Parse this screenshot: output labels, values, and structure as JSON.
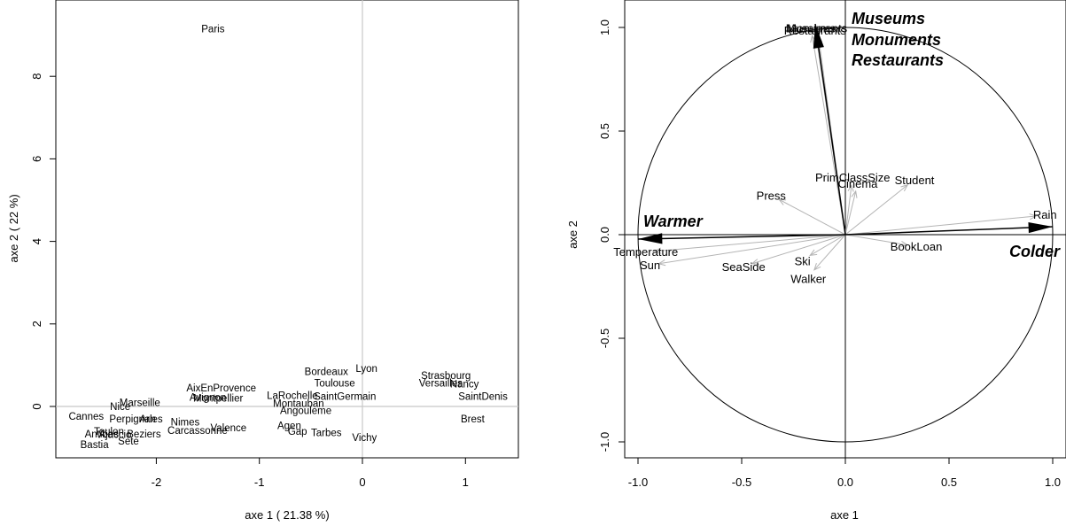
{
  "chart_data": [
    {
      "type": "scatter",
      "xlabel": "axe 1 ( 21.38 %)",
      "ylabel": "axe 2 ( 22 %)",
      "xlim": [
        -2.85,
        1.5
      ],
      "ylim": [
        -1.25,
        9.5
      ],
      "x_ticks": [
        -2,
        -1,
        0,
        1
      ],
      "y_ticks": [
        0,
        2,
        4,
        6,
        8
      ],
      "reference_lines": {
        "x": 0,
        "y": 0,
        "color": "#c8c8c8"
      },
      "points": [
        {
          "label": "Paris",
          "x": -1.45,
          "y": 9.15
        },
        {
          "label": "Lyon",
          "x": 0.04,
          "y": 0.92
        },
        {
          "label": "Bordeaux",
          "x": -0.35,
          "y": 0.85
        },
        {
          "label": "Toulouse",
          "x": -0.27,
          "y": 0.57
        },
        {
          "label": "Strasbourg",
          "x": 0.81,
          "y": 0.75
        },
        {
          "label": "Versailles",
          "x": 0.76,
          "y": 0.57
        },
        {
          "label": "Nancy",
          "x": 0.99,
          "y": 0.55
        },
        {
          "label": "SaintDenis",
          "x": 1.17,
          "y": 0.25
        },
        {
          "label": "Brest",
          "x": 1.07,
          "y": -0.3
        },
        {
          "label": "SaintGermain",
          "x": -0.17,
          "y": 0.25
        },
        {
          "label": "LaRochelle",
          "x": -0.68,
          "y": 0.27
        },
        {
          "label": "Montauban",
          "x": -0.62,
          "y": 0.07
        },
        {
          "label": "Angouleme",
          "x": -0.55,
          "y": -0.1
        },
        {
          "label": "Agen",
          "x": -0.71,
          "y": -0.46
        },
        {
          "label": "Gap",
          "x": -0.63,
          "y": -0.6
        },
        {
          "label": "Tarbes",
          "x": -0.35,
          "y": -0.63
        },
        {
          "label": "Vichy",
          "x": 0.02,
          "y": -0.75
        },
        {
          "label": "Valence",
          "x": -1.3,
          "y": -0.51
        },
        {
          "label": "Carcassonne",
          "x": -1.6,
          "y": -0.58
        },
        {
          "label": "Nimes",
          "x": -1.72,
          "y": -0.38
        },
        {
          "label": "Arles",
          "x": -2.05,
          "y": -0.3
        },
        {
          "label": "Perpignan",
          "x": -2.23,
          "y": -0.3
        },
        {
          "label": "Marseille",
          "x": -2.16,
          "y": 0.1
        },
        {
          "label": "Nice",
          "x": -2.35,
          "y": 0.0
        },
        {
          "label": "Avignon",
          "x": -1.5,
          "y": 0.22
        },
        {
          "label": "Montpellier",
          "x": -1.4,
          "y": 0.2
        },
        {
          "label": "AixEnProvence",
          "x": -1.37,
          "y": 0.45
        },
        {
          "label": "Cannes",
          "x": -2.68,
          "y": -0.24
        },
        {
          "label": "Toulon",
          "x": -2.46,
          "y": -0.6
        },
        {
          "label": "Antibes",
          "x": -2.53,
          "y": -0.67
        },
        {
          "label": "Ajaccio",
          "x": -2.4,
          "y": -0.68
        },
        {
          "label": "Beziers",
          "x": -2.12,
          "y": -0.67
        },
        {
          "label": "Sete",
          "x": -2.27,
          "y": -0.84
        },
        {
          "label": "Bastia",
          "x": -2.6,
          "y": -0.92
        }
      ]
    },
    {
      "type": "line",
      "subtype": "correlation-circle",
      "xlabel": "axe 1",
      "ylabel": "axe 2",
      "xlim": [
        -1.1,
        1.1
      ],
      "ylim": [
        -1.1,
        1.1
      ],
      "x_ticks": [
        "-1.0",
        "-0.5",
        "0.0",
        "0.5",
        "1.0"
      ],
      "y_ticks": [
        "-1.0",
        "-0.5",
        "0.0",
        "0.5",
        "1.0"
      ],
      "reference_lines": {
        "x": 0,
        "y": 0,
        "color": "#000000"
      },
      "unit_circle": true,
      "variables": [
        {
          "label": "Museums",
          "x": -0.16,
          "y": 0.96
        },
        {
          "label": "Monuments",
          "x": -0.13,
          "y": 0.96
        },
        {
          "label": "Restaurants",
          "x": -0.14,
          "y": 0.95
        },
        {
          "label": "PrimClassSize",
          "x": 0.03,
          "y": 0.24
        },
        {
          "label": "Cinema",
          "x": 0.05,
          "y": 0.21
        },
        {
          "label": "Student",
          "x": 0.3,
          "y": 0.24
        },
        {
          "label": "Press",
          "x": -0.32,
          "y": 0.17
        },
        {
          "label": "Rain",
          "x": 0.92,
          "y": 0.09
        },
        {
          "label": "BookLoan",
          "x": 0.3,
          "y": -0.05
        },
        {
          "label": "Temperature",
          "x": -0.92,
          "y": -0.08
        },
        {
          "label": "Sun",
          "x": -0.9,
          "y": -0.14
        },
        {
          "label": "SeaSide",
          "x": -0.45,
          "y": -0.14
        },
        {
          "label": "Ski",
          "x": -0.17,
          "y": -0.1
        },
        {
          "label": "Walker",
          "x": -0.15,
          "y": -0.17
        }
      ],
      "annotations": [
        {
          "label": "Warmer",
          "x": -1.0,
          "y": -0.02
        },
        {
          "label": "Colder",
          "x": 1.0,
          "y": 0.04
        },
        {
          "label": "Museums",
          "x": 0.05,
          "y": 1.05
        },
        {
          "label": "Monuments",
          "x": 0.05,
          "y": 0.95
        },
        {
          "label": "Restaurants",
          "x": 0.05,
          "y": 0.85
        }
      ]
    }
  ]
}
